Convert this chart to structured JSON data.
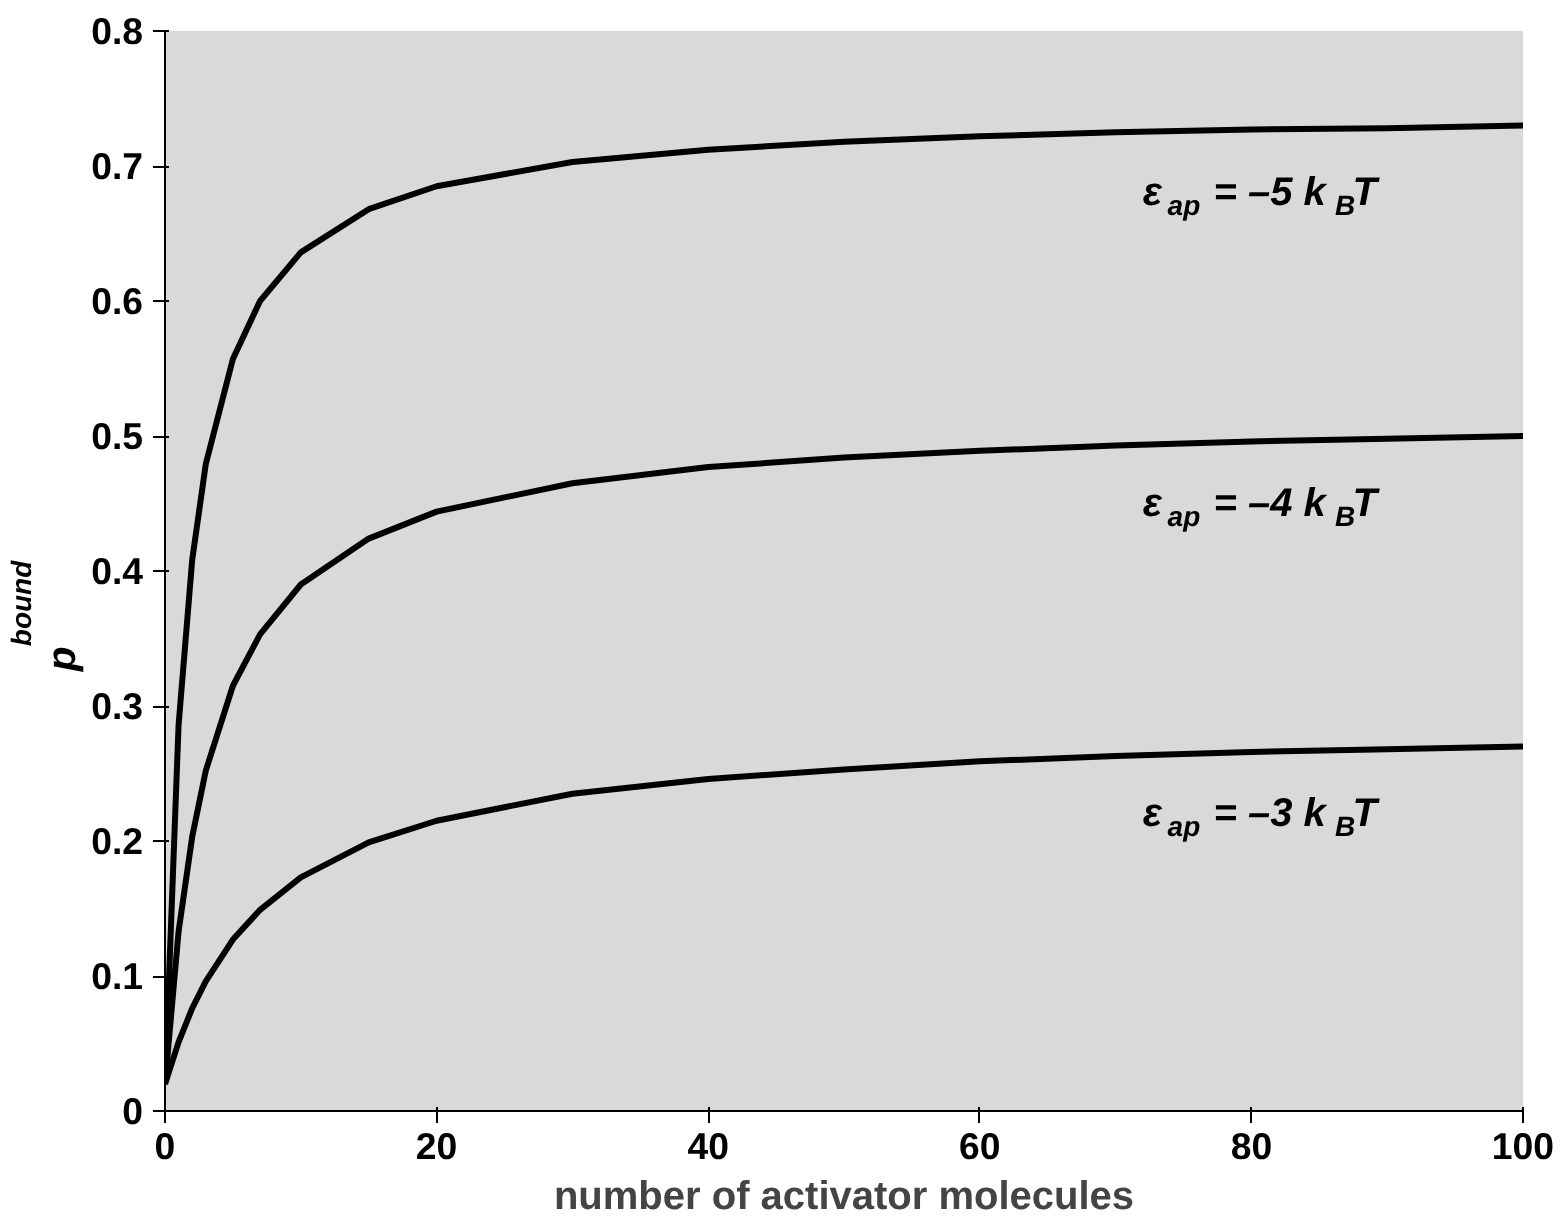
{
  "chart_data": {
    "type": "line",
    "xlabel": "number of activator molecules",
    "ylabel": "p$_{bound}$",
    "xlim": [
      0,
      100
    ],
    "ylim": [
      0,
      0.8
    ],
    "xticks": [
      0,
      20,
      40,
      60,
      80,
      100
    ],
    "yticks": [
      0,
      0.1,
      0.2,
      0.3,
      0.4,
      0.5,
      0.6,
      0.7,
      0.8
    ],
    "x": [
      0,
      1,
      2,
      3,
      5,
      7,
      10,
      15,
      20,
      30,
      40,
      50,
      60,
      70,
      80,
      90,
      100
    ],
    "grid": false,
    "marker": "none",
    "line_style": "solid",
    "series": [
      {
        "name": "ε$_{ap}$ = –5 k$_{B}$T",
        "color": "#000000",
        "values": [
          0.02,
          0.286,
          0.408,
          0.479,
          0.557,
          0.6,
          0.636,
          0.668,
          0.685,
          0.703,
          0.712,
          0.718,
          0.722,
          0.725,
          0.727,
          0.728,
          0.73
        ]
      },
      {
        "name": "ε$_{ap}$ = –4 k$_{B}$T",
        "color": "#000000",
        "values": [
          0.02,
          0.133,
          0.203,
          0.252,
          0.315,
          0.353,
          0.39,
          0.424,
          0.444,
          0.465,
          0.477,
          0.484,
          0.489,
          0.493,
          0.496,
          0.498,
          0.5
        ]
      },
      {
        "name": "ε$_{ap}$ = –3 k$_{B}$T",
        "color": "#000000",
        "values": [
          0.02,
          0.051,
          0.076,
          0.096,
          0.127,
          0.149,
          0.173,
          0.199,
          0.215,
          0.235,
          0.246,
          0.253,
          0.259,
          0.263,
          0.266,
          0.268,
          0.27
        ]
      }
    ]
  }
}
